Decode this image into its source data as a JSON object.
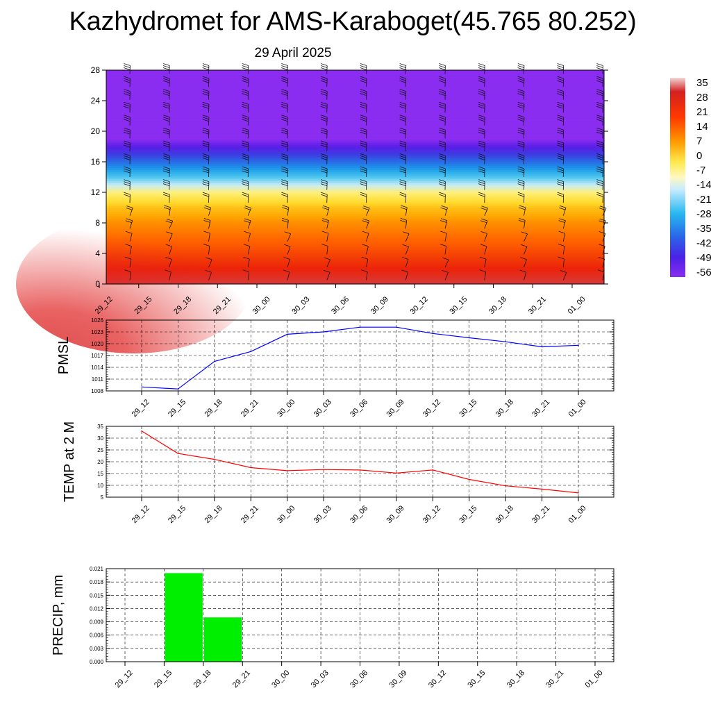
{
  "header": {
    "title": "Kazhydromet for AMS-Karaboget(45.765 80.252)",
    "subtitle": "29 April 2025"
  },
  "time_labels": [
    "29_12",
    "29_15",
    "29_18",
    "29_21",
    "30_00",
    "30_03",
    "30_06",
    "30_09",
    "30_12",
    "30_15",
    "30_18",
    "30_21",
    "01_00"
  ],
  "colorbar": {
    "labels": [
      "35",
      "28",
      "21",
      "14",
      "7",
      "0",
      "-7",
      "-14",
      "-21",
      "-28",
      "-35",
      "-42",
      "-49",
      "-56"
    ]
  },
  "chart_data": [
    {
      "type": "heatmap",
      "title": "",
      "xlabel": "",
      "ylabel": "",
      "x": [
        "29_12",
        "29_15",
        "29_18",
        "29_21",
        "30_00",
        "30_03",
        "30_06",
        "30_09",
        "30_12",
        "30_15",
        "30_18",
        "30_21",
        "01_00"
      ],
      "y_ticks": [
        "0",
        "4",
        "8",
        "12",
        "16",
        "20",
        "24",
        "28"
      ],
      "ylim": [
        0,
        28
      ],
      "colorbar_range": [
        -56,
        35
      ],
      "legend": "right",
      "temperature_profile": [
        {
          "y": 0,
          "value": 28
        },
        {
          "y": 2,
          "value": 21
        },
        {
          "y": 4,
          "value": 17
        },
        {
          "y": 6,
          "value": 13
        },
        {
          "y": 8,
          "value": 9
        },
        {
          "y": 10,
          "value": 3
        },
        {
          "y": 12,
          "value": -7
        },
        {
          "y": 13,
          "value": -14
        },
        {
          "y": 14,
          "value": -21
        },
        {
          "y": 15,
          "value": -28
        },
        {
          "y": 16,
          "value": -35
        },
        {
          "y": 17,
          "value": -42
        },
        {
          "y": 18,
          "value": -49
        },
        {
          "y": 19,
          "value": -56
        },
        {
          "y": 28,
          "value": -56
        }
      ],
      "wind_barbs": true
    },
    {
      "type": "line",
      "ylabel": "PMSL",
      "x": [
        "29_12",
        "29_15",
        "29_18",
        "29_21",
        "30_00",
        "30_03",
        "30_06",
        "30_09",
        "30_12",
        "30_15",
        "30_18",
        "30_21",
        "01_00"
      ],
      "series": [
        {
          "values": [
            1009.0,
            1008.5,
            1015.5,
            1018.0,
            1022.4,
            1023.0,
            1024.2,
            1024.2,
            1022.6,
            1021.5,
            1020.5,
            1019.2,
            1019.6
          ]
        }
      ],
      "yticks": [
        "1008",
        "1011",
        "1014",
        "1017",
        "1020",
        "1023",
        "1026"
      ],
      "ylim": [
        1008,
        1026
      ],
      "color": "#0000ff",
      "grid": true
    },
    {
      "type": "line",
      "ylabel": "TEMP at 2 M",
      "x": [
        "29_12",
        "29_15",
        "29_18",
        "29_21",
        "30_00",
        "30_03",
        "30_06",
        "30_09",
        "30_12",
        "30_15",
        "30_18",
        "30_21",
        "01_00"
      ],
      "series": [
        {
          "values": [
            33.0,
            23.5,
            21.0,
            17.5,
            16.2,
            16.7,
            16.5,
            15.2,
            16.5,
            12.5,
            9.8,
            8.4,
            6.8
          ]
        }
      ],
      "yticks": [
        "5",
        "10",
        "15",
        "20",
        "25",
        "30",
        "35"
      ],
      "ylim": [
        5,
        35
      ],
      "color": "#ff0000",
      "grid": true
    },
    {
      "type": "bar",
      "ylabel": "PRECIP, mm",
      "x": [
        "29_12",
        "29_15",
        "29_18",
        "29_21",
        "30_00",
        "30_03",
        "30_06",
        "30_09",
        "30_12",
        "30_15",
        "30_18",
        "30_21",
        "01_00"
      ],
      "values": [
        0,
        0,
        0.02,
        0.01,
        0,
        0,
        0,
        0,
        0,
        0,
        0,
        0,
        0
      ],
      "yticks": [
        "0.000",
        "0.003",
        "0.006",
        "0.009",
        "0.012",
        "0.015",
        "0.018",
        "0.021"
      ],
      "ylim": [
        0,
        0.021
      ],
      "color": "#00ee00",
      "grid": true
    }
  ]
}
